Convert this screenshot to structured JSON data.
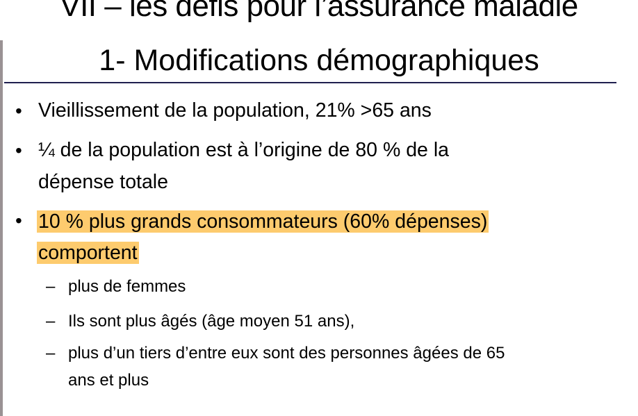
{
  "slide": {
    "title_line1": "VII – les défis pour l’assurance maladie",
    "title_line2": "1- Modifications démographiques",
    "bullets": [
      {
        "lines": [
          "Vieillissement de la population, 21% >65 ans"
        ]
      },
      {
        "lines": [
          "¼ de la population est à l’origine de 80 % de la",
          "dépense totale"
        ]
      },
      {
        "lines": [
          "10 % plus grands consommateurs (60% dépenses)",
          "comportent"
        ],
        "highlight_color": "#fdcb6e"
      }
    ],
    "sub_bullets": [
      {
        "lines": [
          "plus de femmes"
        ]
      },
      {
        "lines": [
          "Ils sont plus âgés (âge moyen 51 ans),"
        ]
      },
      {
        "lines": [
          "plus d’un tiers d’entre eux sont des personnes âgées de 65",
          "ans et plus"
        ]
      }
    ],
    "bullet_glyph": "•",
    "dash_glyph": "–"
  }
}
